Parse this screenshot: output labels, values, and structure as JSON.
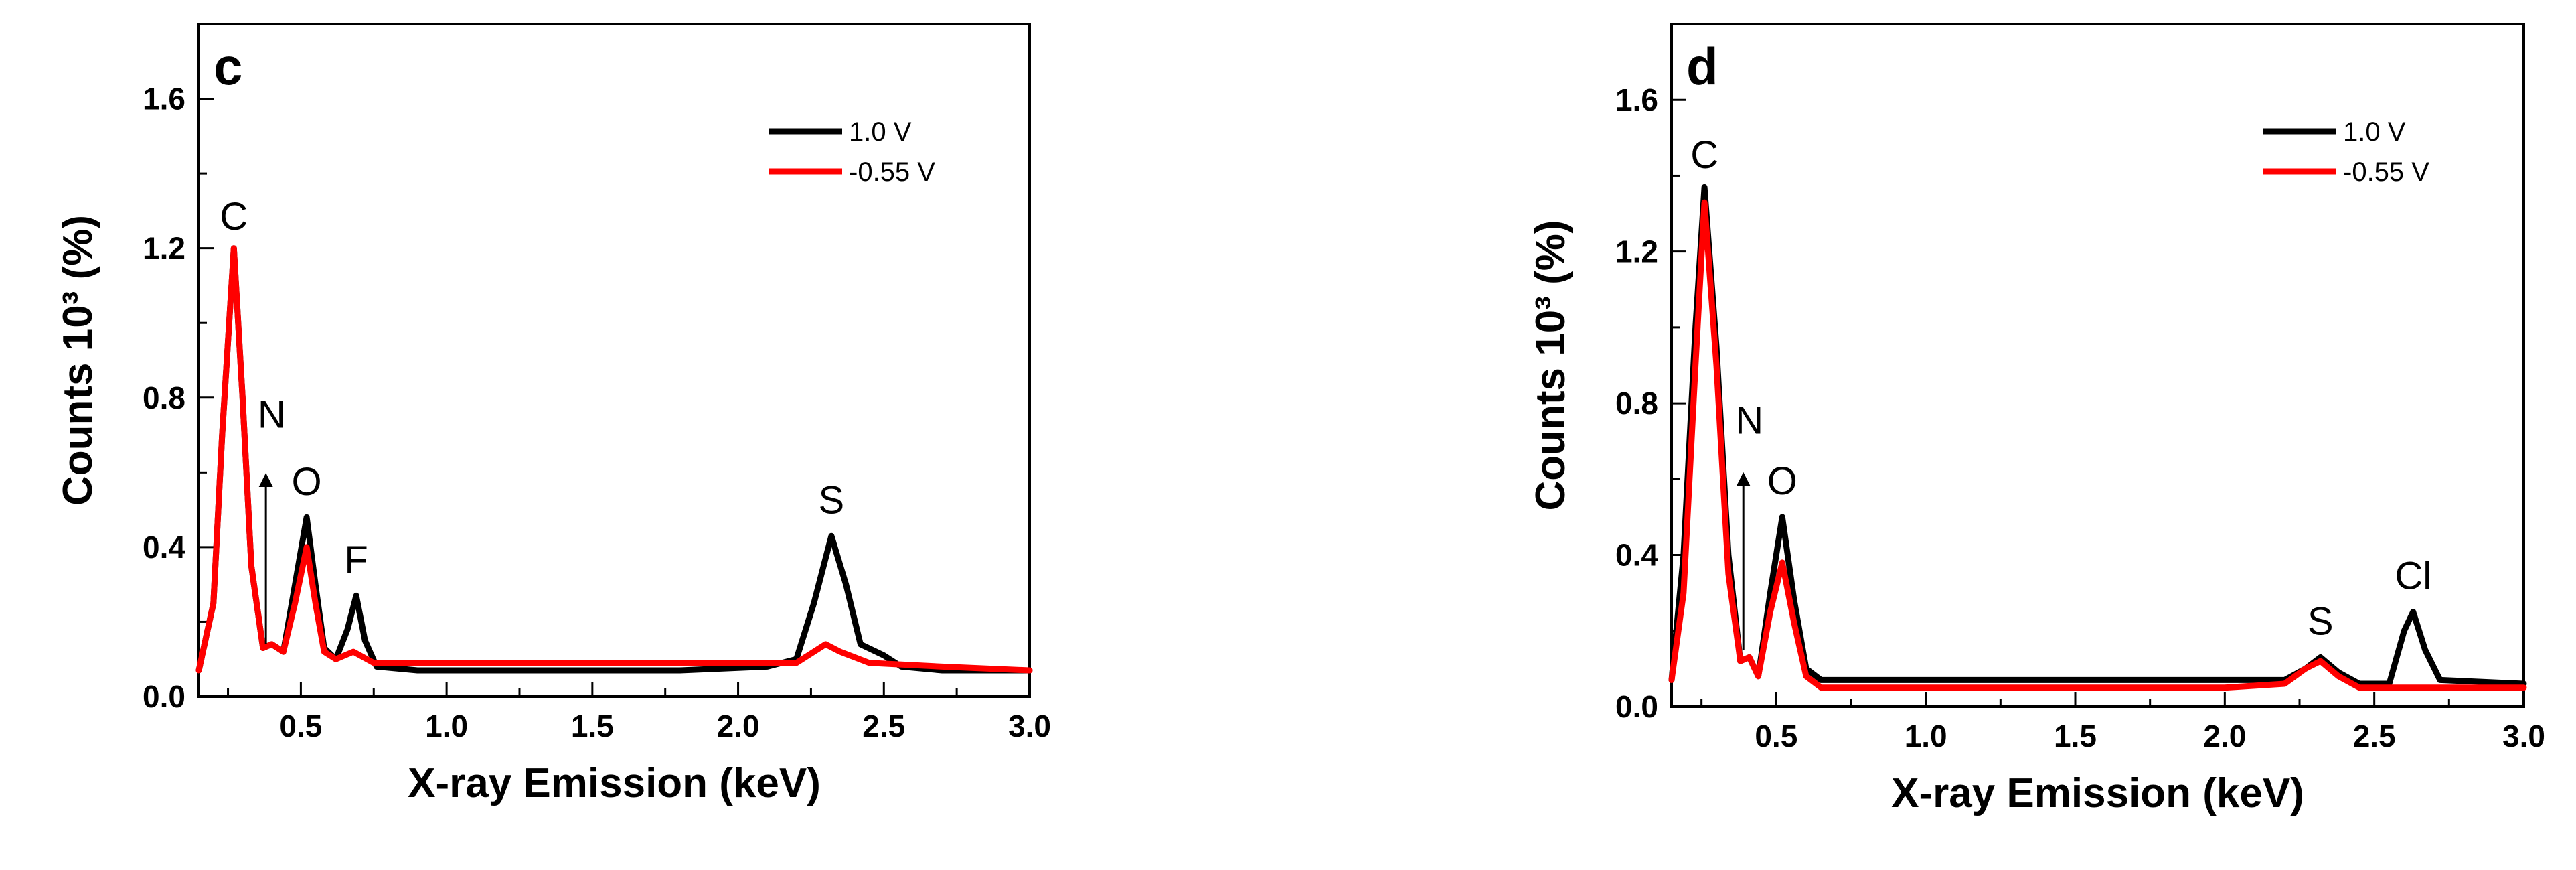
{
  "colors": {
    "black": "#000000",
    "red": "#ff0000"
  },
  "chart_data": [
    {
      "type": "line",
      "panel": "c",
      "xlabel": "X-ray Emission (keV)",
      "ylabel": "Counts 10³ (%)",
      "xlim": [
        0.15,
        3.0
      ],
      "ylim": [
        0.0,
        1.8
      ],
      "xticks": [
        "0.5",
        "1.0",
        "1.5",
        "2.0",
        "2.5",
        "3.0"
      ],
      "yticks": [
        "0.0",
        "0.4",
        "0.8",
        "1.2",
        "1.6"
      ],
      "legend_position": "top-right",
      "series": [
        {
          "name": "1.0 V",
          "color": "#000000",
          "points": [
            [
              0.15,
              0.07
            ],
            [
              0.2,
              0.25
            ],
            [
              0.23,
              0.7
            ],
            [
              0.27,
              1.2
            ],
            [
              0.3,
              0.8
            ],
            [
              0.33,
              0.35
            ],
            [
              0.37,
              0.13
            ],
            [
              0.4,
              0.14
            ],
            [
              0.44,
              0.12
            ],
            [
              0.48,
              0.3
            ],
            [
              0.52,
              0.48
            ],
            [
              0.55,
              0.3
            ],
            [
              0.58,
              0.13
            ],
            [
              0.62,
              0.1
            ],
            [
              0.66,
              0.18
            ],
            [
              0.69,
              0.27
            ],
            [
              0.72,
              0.15
            ],
            [
              0.76,
              0.08
            ],
            [
              0.9,
              0.07
            ],
            [
              1.2,
              0.07
            ],
            [
              1.5,
              0.07
            ],
            [
              1.8,
              0.07
            ],
            [
              2.1,
              0.08
            ],
            [
              2.2,
              0.1
            ],
            [
              2.26,
              0.25
            ],
            [
              2.32,
              0.43
            ],
            [
              2.37,
              0.3
            ],
            [
              2.42,
              0.14
            ],
            [
              2.5,
              0.11
            ],
            [
              2.56,
              0.08
            ],
            [
              2.7,
              0.07
            ],
            [
              3.0,
              0.07
            ]
          ]
        },
        {
          "name": "-0.55 V",
          "color": "#ff0000",
          "points": [
            [
              0.15,
              0.07
            ],
            [
              0.2,
              0.25
            ],
            [
              0.23,
              0.7
            ],
            [
              0.27,
              1.2
            ],
            [
              0.3,
              0.8
            ],
            [
              0.33,
              0.35
            ],
            [
              0.37,
              0.13
            ],
            [
              0.4,
              0.14
            ],
            [
              0.44,
              0.12
            ],
            [
              0.48,
              0.25
            ],
            [
              0.52,
              0.4
            ],
            [
              0.55,
              0.25
            ],
            [
              0.58,
              0.12
            ],
            [
              0.62,
              0.1
            ],
            [
              0.68,
              0.12
            ],
            [
              0.75,
              0.09
            ],
            [
              0.9,
              0.09
            ],
            [
              1.2,
              0.09
            ],
            [
              1.5,
              0.09
            ],
            [
              1.8,
              0.09
            ],
            [
              2.2,
              0.09
            ],
            [
              2.3,
              0.14
            ],
            [
              2.35,
              0.12
            ],
            [
              2.45,
              0.09
            ],
            [
              2.7,
              0.08
            ],
            [
              3.0,
              0.07
            ]
          ]
        }
      ],
      "annotations": [
        {
          "text": "C",
          "x": 0.27,
          "y": 1.25
        },
        {
          "text": "N",
          "x": 0.4,
          "y": 0.72,
          "arrow_from": [
            0.38,
            0.58
          ],
          "arrow_to": [
            0.38,
            0.14
          ]
        },
        {
          "text": "O",
          "x": 0.52,
          "y": 0.54
        },
        {
          "text": "F",
          "x": 0.69,
          "y": 0.33
        },
        {
          "text": "S",
          "x": 2.32,
          "y": 0.49
        }
      ]
    },
    {
      "type": "line",
      "panel": "d",
      "xlabel": "X-ray Emission (keV)",
      "ylabel": "Counts 10³ (%)",
      "xlim": [
        0.15,
        3.0
      ],
      "ylim": [
        0.0,
        1.8
      ],
      "xticks": [
        "0.5",
        "1.0",
        "1.5",
        "2.0",
        "2.5",
        "3.0"
      ],
      "yticks": [
        "0.0",
        "0.4",
        "0.8",
        "1.2",
        "1.6"
      ],
      "legend_position": "top-right",
      "series": [
        {
          "name": "1.0 V",
          "color": "#000000",
          "points": [
            [
              0.15,
              0.07
            ],
            [
              0.19,
              0.4
            ],
            [
              0.23,
              1.0
            ],
            [
              0.26,
              1.37
            ],
            [
              0.3,
              0.95
            ],
            [
              0.34,
              0.4
            ],
            [
              0.38,
              0.12
            ],
            [
              0.41,
              0.13
            ],
            [
              0.44,
              0.08
            ],
            [
              0.48,
              0.3
            ],
            [
              0.52,
              0.5
            ],
            [
              0.56,
              0.28
            ],
            [
              0.6,
              0.1
            ],
            [
              0.65,
              0.07
            ],
            [
              1.0,
              0.07
            ],
            [
              1.5,
              0.07
            ],
            [
              2.0,
              0.07
            ],
            [
              2.2,
              0.07
            ],
            [
              2.27,
              0.1
            ],
            [
              2.32,
              0.13
            ],
            [
              2.38,
              0.09
            ],
            [
              2.45,
              0.06
            ],
            [
              2.55,
              0.06
            ],
            [
              2.6,
              0.2
            ],
            [
              2.63,
              0.25
            ],
            [
              2.67,
              0.15
            ],
            [
              2.72,
              0.07
            ],
            [
              3.0,
              0.06
            ]
          ]
        },
        {
          "name": "-0.55 V",
          "color": "#ff0000",
          "points": [
            [
              0.15,
              0.07
            ],
            [
              0.19,
              0.3
            ],
            [
              0.23,
              0.9
            ],
            [
              0.26,
              1.33
            ],
            [
              0.3,
              0.9
            ],
            [
              0.34,
              0.35
            ],
            [
              0.38,
              0.12
            ],
            [
              0.41,
              0.13
            ],
            [
              0.44,
              0.08
            ],
            [
              0.48,
              0.25
            ],
            [
              0.52,
              0.38
            ],
            [
              0.56,
              0.22
            ],
            [
              0.6,
              0.08
            ],
            [
              0.65,
              0.05
            ],
            [
              1.0,
              0.05
            ],
            [
              1.5,
              0.05
            ],
            [
              2.0,
              0.05
            ],
            [
              2.2,
              0.06
            ],
            [
              2.27,
              0.1
            ],
            [
              2.32,
              0.12
            ],
            [
              2.38,
              0.08
            ],
            [
              2.45,
              0.05
            ],
            [
              2.6,
              0.05
            ],
            [
              3.0,
              0.05
            ]
          ]
        }
      ],
      "annotations": [
        {
          "text": "C",
          "x": 0.26,
          "y": 1.42
        },
        {
          "text": "N",
          "x": 0.41,
          "y": 0.72,
          "arrow_from": [
            0.39,
            0.6
          ],
          "arrow_to": [
            0.39,
            0.15
          ]
        },
        {
          "text": "O",
          "x": 0.52,
          "y": 0.56
        },
        {
          "text": "S",
          "x": 2.32,
          "y": 0.19
        },
        {
          "text": "Cl",
          "x": 2.63,
          "y": 0.31
        }
      ]
    }
  ]
}
